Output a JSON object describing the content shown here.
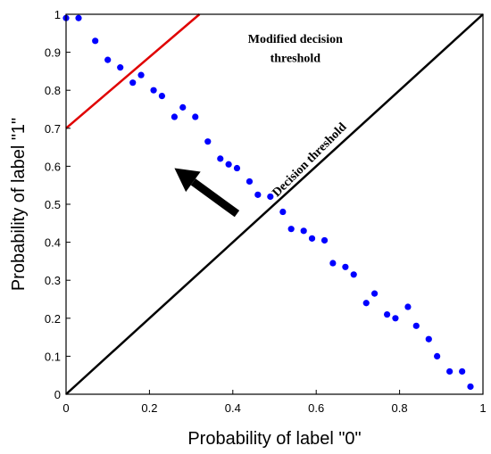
{
  "chart_data": {
    "type": "scatter",
    "xlabel": "Probability of label \"0\"",
    "ylabel": "Probability of label \"1\"",
    "xlim": [
      0,
      1
    ],
    "ylim": [
      0,
      1
    ],
    "x_ticks": [
      "0",
      "0.2",
      "0.4",
      "0.6",
      "0.8",
      "1"
    ],
    "y_ticks": [
      "0",
      "0.1",
      "0.2",
      "0.3",
      "0.4",
      "0.5",
      "0.6",
      "0.7",
      "0.8",
      "0.9",
      "1"
    ],
    "grid": false,
    "legend": "none",
    "series": [
      {
        "color": "#0000ff",
        "points": [
          [
            0.0,
            0.99
          ],
          [
            0.03,
            0.99
          ],
          [
            0.07,
            0.93
          ],
          [
            0.1,
            0.88
          ],
          [
            0.13,
            0.86
          ],
          [
            0.16,
            0.82
          ],
          [
            0.18,
            0.84
          ],
          [
            0.21,
            0.8
          ],
          [
            0.23,
            0.785
          ],
          [
            0.26,
            0.73
          ],
          [
            0.28,
            0.755
          ],
          [
            0.31,
            0.73
          ],
          [
            0.34,
            0.665
          ],
          [
            0.37,
            0.62
          ],
          [
            0.39,
            0.605
          ],
          [
            0.41,
            0.595
          ],
          [
            0.44,
            0.56
          ],
          [
            0.46,
            0.525
          ],
          [
            0.49,
            0.52
          ],
          [
            0.52,
            0.48
          ],
          [
            0.54,
            0.435
          ],
          [
            0.57,
            0.43
          ],
          [
            0.59,
            0.41
          ],
          [
            0.62,
            0.405
          ],
          [
            0.64,
            0.345
          ],
          [
            0.67,
            0.335
          ],
          [
            0.69,
            0.315
          ],
          [
            0.72,
            0.24
          ],
          [
            0.74,
            0.265
          ],
          [
            0.77,
            0.21
          ],
          [
            0.79,
            0.2
          ],
          [
            0.82,
            0.23
          ],
          [
            0.84,
            0.18
          ],
          [
            0.87,
            0.145
          ],
          [
            0.89,
            0.1
          ],
          [
            0.92,
            0.06
          ],
          [
            0.95,
            0.06
          ],
          [
            0.97,
            0.02
          ]
        ]
      }
    ],
    "lines": [
      {
        "color": "#000000",
        "from": [
          0,
          0
        ],
        "to": [
          1,
          1
        ]
      },
      {
        "color": "#e00000",
        "from": [
          0,
          0.7
        ],
        "to": [
          0.32,
          1.0
        ]
      }
    ],
    "annotations": [
      {
        "text": "Modified decision",
        "x": 0.55,
        "y": 0.925
      },
      {
        "text": "threshold",
        "x": 0.55,
        "y": 0.875
      },
      {
        "text": "Decision threshold",
        "x": 0.59,
        "y": 0.61,
        "rotation": -45
      }
    ],
    "arrow": {
      "from": [
        0.41,
        0.475
      ],
      "to": [
        0.26,
        0.595
      ],
      "color": "#000000"
    }
  }
}
